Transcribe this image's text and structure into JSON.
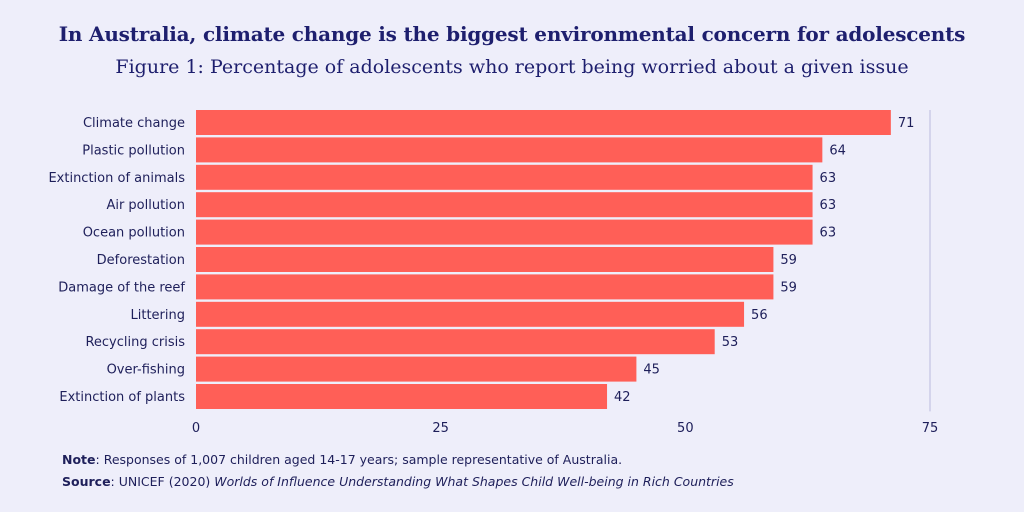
{
  "header": {
    "title": "In Australia, climate change is the biggest environmental concern for adolescents",
    "subtitle": "Figure 1: Percentage of adolescents who report being worried about a given issue"
  },
  "chart_data": {
    "type": "bar",
    "orientation": "horizontal",
    "categories": [
      "Climate change",
      "Plastic pollution",
      "Extinction of animals",
      "Air pollution",
      "Ocean pollution",
      "Deforestation",
      "Damage of the reef",
      "Littering",
      "Recycling crisis",
      "Over-fishing",
      "Extinction of plants"
    ],
    "values": [
      71,
      64,
      63,
      63,
      63,
      59,
      59,
      56,
      53,
      45,
      42
    ],
    "xlim": [
      0,
      75
    ],
    "xticks": [
      0,
      25,
      50,
      75
    ],
    "bar_color": "#ff5f57",
    "grid": "vertical line at 75",
    "data_labels": true
  },
  "footer": {
    "note_label": "Note",
    "note_text": ": Responses of 1,007 children aged 14-17 years; sample representative of Australia.",
    "source_label": "Source",
    "source_text": ": UNICEF (2020) ",
    "source_title": "Worlds of Influence Understanding What Shapes Child Well-being in Rich Countries"
  }
}
